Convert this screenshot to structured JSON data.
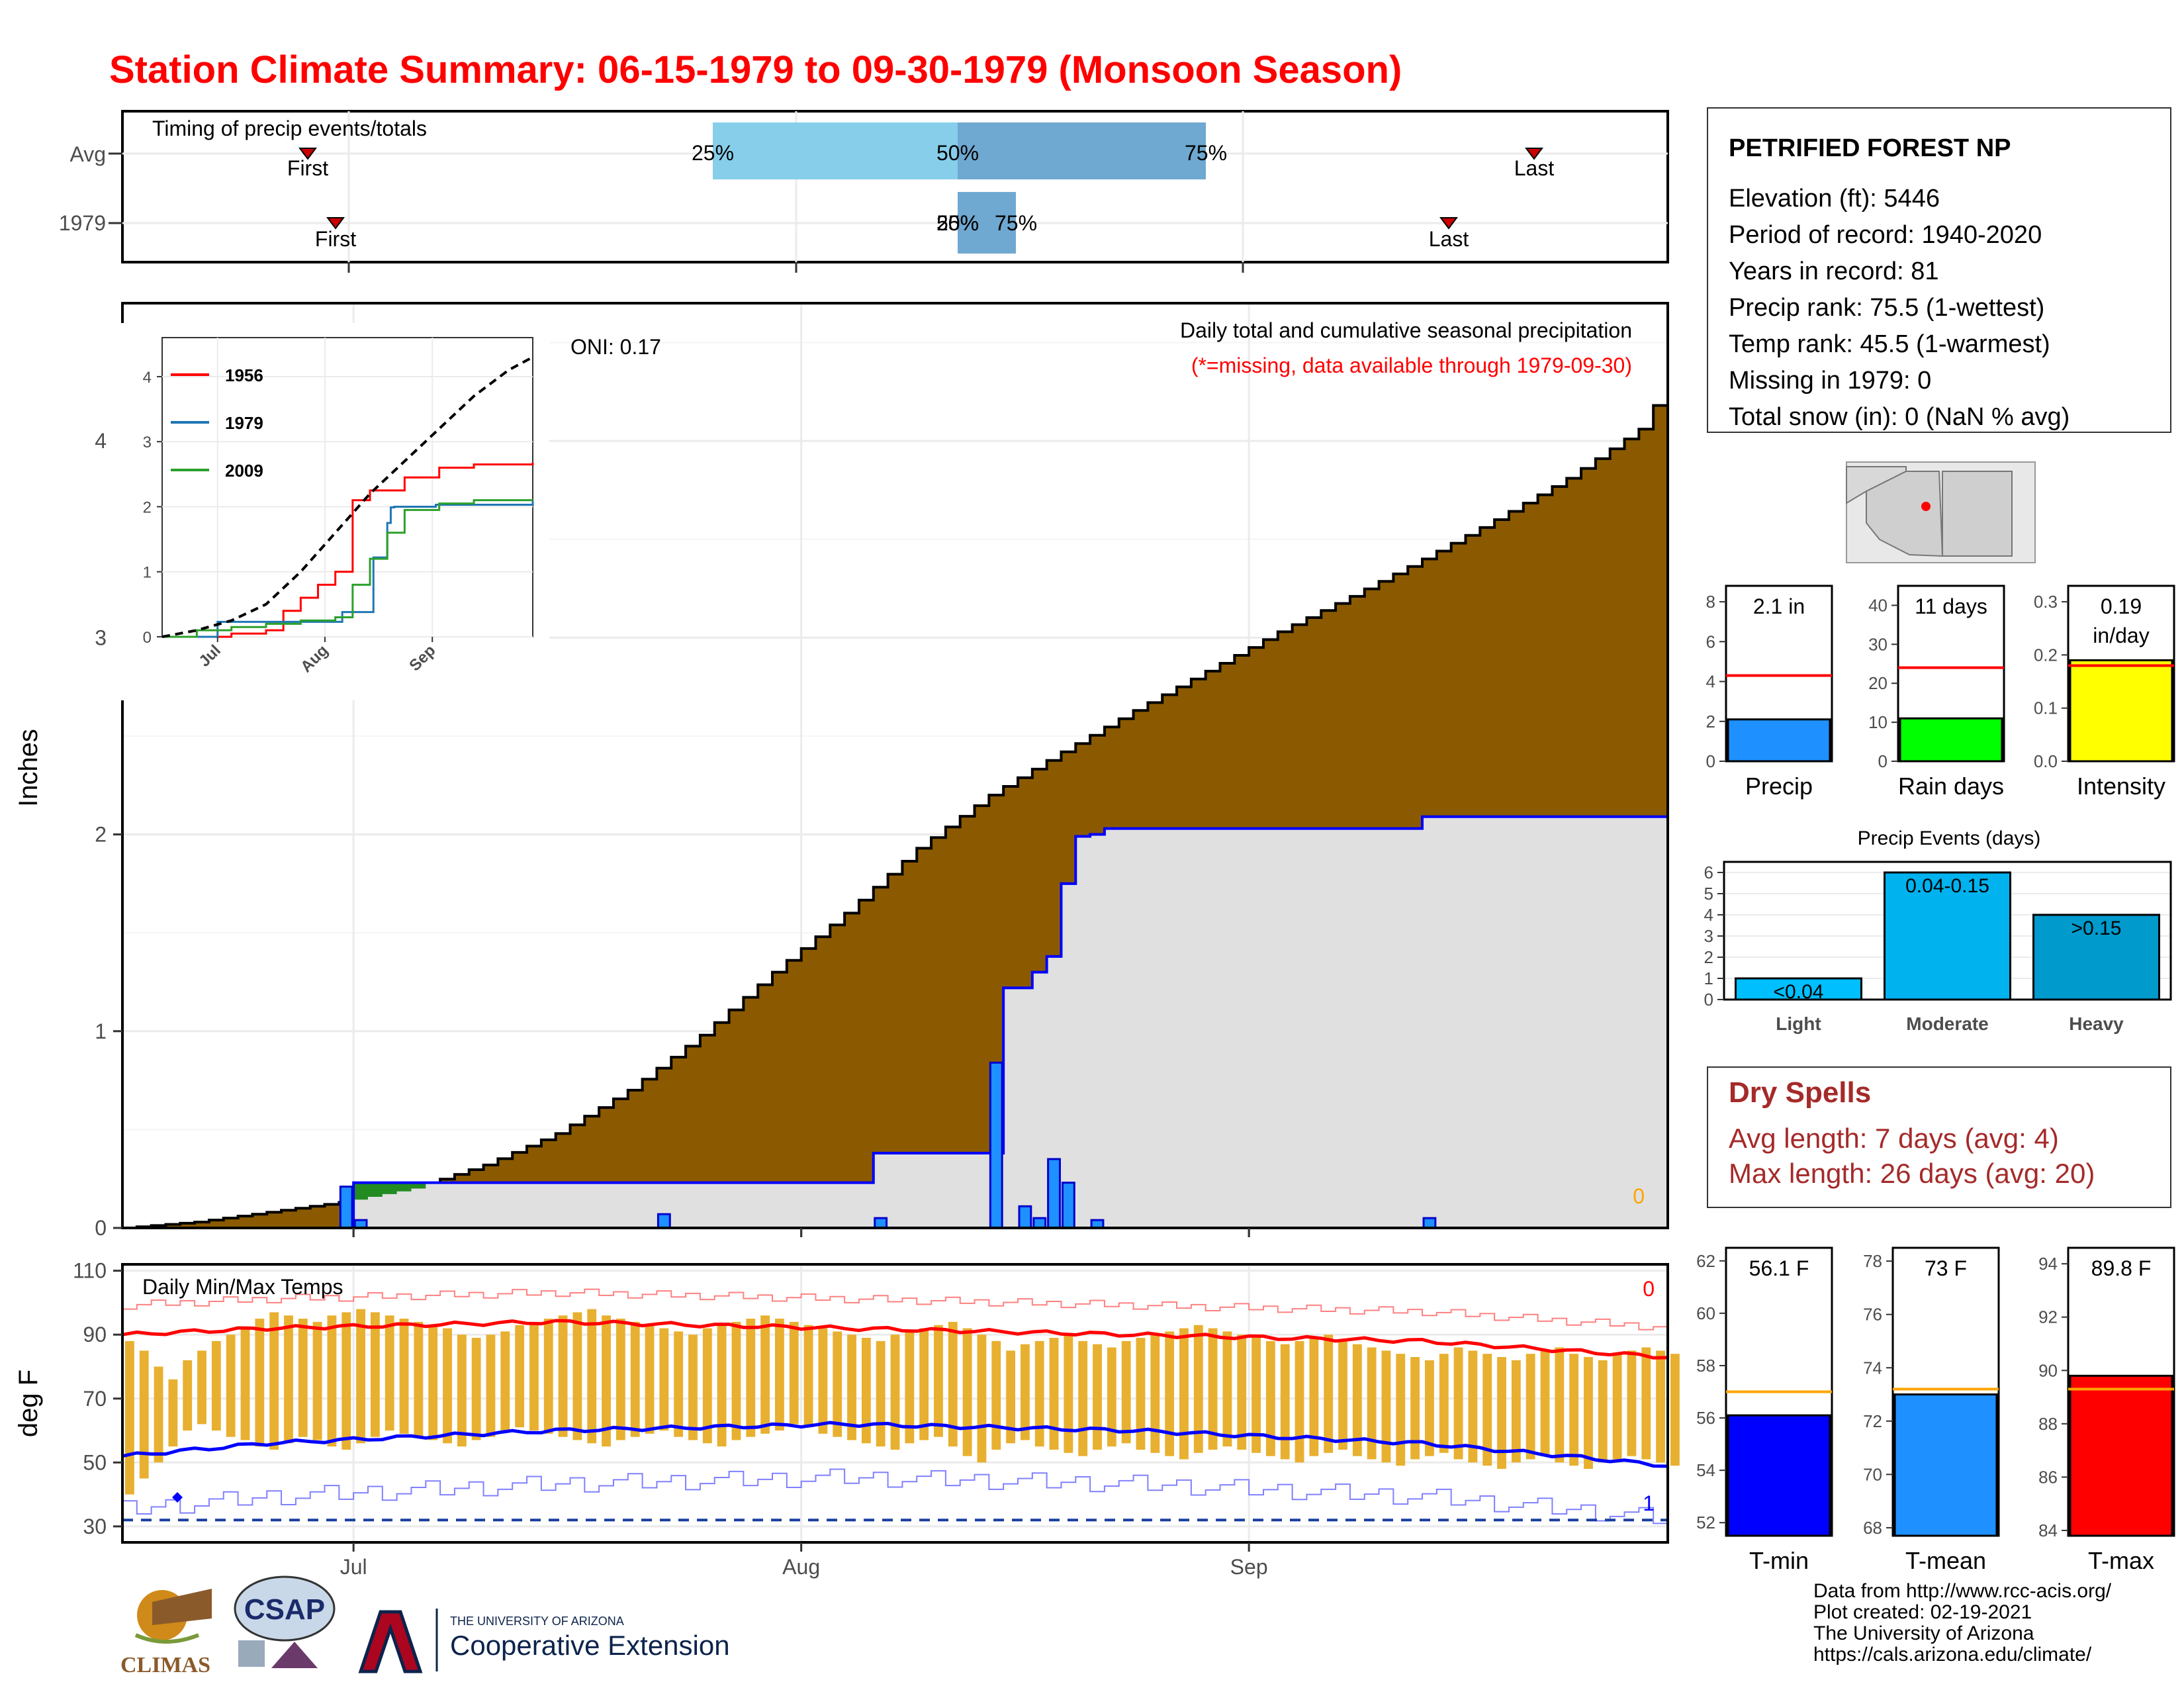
{
  "title": "Station Climate Summary: 06-15-1979 to 09-30-1979 (Monsoon Season)",
  "colors": {
    "title": "#ff0000",
    "cumulative_avg_fill": "#8b5a00",
    "cumulative_year_fill": "#e0e0e0",
    "year_line": "#0000ff",
    "daily_bar": "#1e90ff",
    "excess_fill": "#228b22",
    "temp_bar": "#e8b030",
    "tmax_line": "#ff0000",
    "tmin_line": "#0000ff",
    "precip_box": "#1e90ff",
    "raindays_box": "#00ff00",
    "intensity_box": "#ffff00",
    "tmin_box": "#0000ff",
    "tmean_box": "#1e90ff",
    "tmax_box": "#ff0000",
    "dry_spells": "#a52a2a"
  },
  "timing": {
    "panel_label": "Timing of precip events/totals",
    "row_labels": [
      "Avg",
      "1979"
    ],
    "first_label": "First",
    "last_label": "Last",
    "q25": "25%",
    "q50": "50%",
    "q75": "75%"
  },
  "station": {
    "name": "PETRIFIED FOREST NP",
    "lines": [
      "Elevation (ft): 5446",
      "Period of record: 1940-2020",
      "Years in record: 81",
      "Precip rank: 75.5 (1-wettest)",
      "Temp rank: 45.5 (1-warmest)",
      "Missing in 1979: 0",
      "Total snow (in): 0 (NaN % avg)"
    ]
  },
  "precip_panel": {
    "ylabel": "Inches",
    "oni": "ONI: 0.17",
    "label": "Daily total and cumulative seasonal precipitation",
    "missing_note": "(*=missing, data available through 1979-09-30)",
    "missing_count": "0",
    "yticks": [
      "0",
      "1",
      "2",
      "3",
      "4"
    ],
    "month_labels": [
      "Jul",
      "Aug",
      "Sep"
    ]
  },
  "inset": {
    "legend": [
      "1956",
      "1979",
      "2009"
    ],
    "legend_colors": [
      "#ff0000",
      "#1f77b4",
      "#2ca02c"
    ],
    "yticks": [
      "0",
      "1",
      "2",
      "3",
      "4"
    ],
    "xticks": [
      "Jul",
      "Aug",
      "Sep"
    ]
  },
  "temp_panel": {
    "ylabel": "deg F",
    "label": "Daily Min/Max Temps",
    "missing_count": "0",
    "freeze_count": "1",
    "yticks": [
      "30",
      "50",
      "70",
      "90",
      "110"
    ],
    "month_labels": [
      "Jul",
      "Aug",
      "Sep"
    ]
  },
  "mini_precip": [
    {
      "value_label": "2.1 in",
      "xlabel": "Precip",
      "yticks": [
        "0",
        "2",
        "4",
        "6",
        "8"
      ]
    },
    {
      "value_label": "11 days",
      "xlabel": "Rain days",
      "yticks": [
        "0",
        "10",
        "20",
        "30",
        "40"
      ]
    },
    {
      "value_label": "0.19",
      "value_label2": "in/day",
      "xlabel": "Intensity",
      "yticks": [
        "0.0",
        "0.1",
        "0.2",
        "0.3"
      ]
    }
  ],
  "events": {
    "title": "Precip Events (days)",
    "yticks": [
      "0",
      "1",
      "2",
      "3",
      "4",
      "5",
      "6"
    ],
    "categories": [
      "Light",
      "Moderate",
      "Heavy"
    ],
    "labels": [
      "<0.04",
      "0.04-0.15",
      ">0.15"
    ],
    "colors": [
      "#00bfff",
      "#00b2ee",
      "#009acd"
    ]
  },
  "dry_spells": {
    "title": "Dry Spells",
    "avg": "Avg length: 7 days (avg: 4)",
    "max": "Max length: 26 days (avg: 20)"
  },
  "mini_temp": [
    {
      "value_label": "56.1 F",
      "xlabel": "T-min",
      "yticks": [
        "52",
        "54",
        "56",
        "58",
        "60",
        "62"
      ]
    },
    {
      "value_label": "73 F",
      "xlabel": "T-mean",
      "yticks": [
        "68",
        "70",
        "72",
        "74",
        "76",
        "78"
      ]
    },
    {
      "value_label": "89.8 F",
      "xlabel": "T-max",
      "yticks": [
        "84",
        "86",
        "88",
        "90",
        "92",
        "94"
      ]
    }
  ],
  "footer": [
    "Data from http://www.rcc-acis.org/",
    "Plot created: 02-19-2021",
    "The University of Arizona",
    "https://cals.arizona.edu/climate/"
  ],
  "logos": {
    "climas": "CLIMAS",
    "csap": "CSAP",
    "ua_small": "THE UNIVERSITY OF ARIZONA",
    "ua_big": "Cooperative Extension"
  },
  "chart_data": [
    {
      "type": "area",
      "title": "Daily total and cumulative seasonal precipitation",
      "ylabel": "Inches",
      "ylim": [
        0,
        4.7
      ],
      "x_start": "1979-06-15",
      "x_end": "1979-09-30",
      "avg_cumulative": {
        "x_day": [
          0,
          5,
          10,
          15,
          20,
          25,
          30,
          35,
          40,
          45,
          50,
          55,
          60,
          65,
          70,
          75,
          80,
          85,
          90,
          95,
          100,
          105,
          107
        ],
        "y": [
          0.0,
          0.03,
          0.08,
          0.13,
          0.2,
          0.32,
          0.48,
          0.7,
          0.98,
          1.3,
          1.6,
          1.93,
          2.2,
          2.42,
          2.63,
          2.83,
          3.03,
          3.21,
          3.4,
          3.6,
          3.81,
          4.06,
          4.3
        ]
      },
      "year_cumulative": {
        "x_day": [
          0,
          15,
          16,
          37,
          52,
          60,
          61,
          62,
          63,
          64,
          65,
          66,
          67,
          68,
          71,
          79,
          90,
          100,
          107
        ],
        "y": [
          0,
          0,
          0.23,
          0.23,
          0.38,
          0.38,
          1.22,
          1.22,
          1.3,
          1.38,
          1.75,
          1.99,
          2.0,
          2.03,
          2.03,
          2.03,
          2.09,
          2.09,
          2.09
        ]
      },
      "daily_bars": [
        {
          "date": "1979-06-30",
          "value": 0.21
        },
        {
          "date": "1979-07-01",
          "value": 0.04
        },
        {
          "date": "1979-07-22",
          "value": 0.07
        },
        {
          "date": "1979-08-06",
          "value": 0.05
        },
        {
          "date": "1979-08-14",
          "value": 0.84
        },
        {
          "date": "1979-08-16",
          "value": 0.11
        },
        {
          "date": "1979-08-17",
          "value": 0.05
        },
        {
          "date": "1979-08-18",
          "value": 0.35
        },
        {
          "date": "1979-08-19",
          "value": 0.23
        },
        {
          "date": "1979-08-21",
          "value": 0.04
        },
        {
          "date": "1979-09-13",
          "value": 0.05
        }
      ]
    },
    {
      "type": "line",
      "title": "Daily Min/Max Temps",
      "ylabel": "deg F",
      "ylim": [
        25,
        112
      ],
      "avg_tmax": {
        "x_day": [
          0,
          10,
          20,
          30,
          40,
          50,
          60,
          70,
          80,
          90,
          100,
          107
        ],
        "y": [
          90,
          92,
          93,
          94,
          93,
          92,
          91,
          90,
          89,
          88,
          85,
          83
        ]
      },
      "avg_tmin": {
        "x_day": [
          0,
          10,
          20,
          30,
          40,
          50,
          60,
          70,
          80,
          90,
          100,
          107
        ],
        "y": [
          52,
          56,
          58,
          60,
          61,
          62,
          61,
          60,
          58,
          56,
          52,
          49
        ]
      },
      "daily_tmax": [
        88,
        85,
        80,
        76,
        82,
        85,
        88,
        90,
        92,
        95,
        97,
        96,
        95,
        94,
        96,
        97,
        98,
        97,
        96,
        95,
        94,
        93,
        92,
        90,
        89,
        90,
        91,
        93,
        94,
        95,
        96,
        97,
        98,
        96,
        95,
        94,
        93,
        92,
        91,
        90,
        92,
        93,
        94,
        95,
        96,
        95,
        94,
        93,
        92,
        91,
        90,
        89,
        88,
        90,
        91,
        92,
        93,
        94,
        92,
        90,
        88,
        85,
        87,
        88,
        89,
        90,
        88,
        87,
        86,
        88,
        89,
        90,
        91,
        92,
        93,
        92,
        91,
        90,
        89,
        88,
        87,
        88,
        89,
        90,
        88,
        87,
        86,
        85,
        84,
        83,
        82,
        84,
        86,
        85,
        84,
        83,
        82,
        84,
        85,
        86,
        84,
        83,
        82,
        84,
        85,
        86,
        85,
        84
      ],
      "daily_tmin": [
        40,
        45,
        50,
        55,
        60,
        62,
        60,
        58,
        57,
        55,
        54,
        56,
        58,
        57,
        55,
        54,
        56,
        58,
        60,
        59,
        58,
        57,
        56,
        55,
        57,
        58,
        60,
        61,
        60,
        59,
        58,
        57,
        56,
        55,
        57,
        58,
        59,
        60,
        58,
        57,
        56,
        55,
        57,
        58,
        59,
        60,
        62,
        61,
        59,
        58,
        57,
        56,
        55,
        54,
        56,
        57,
        58,
        55,
        52,
        50,
        54,
        56,
        57,
        55,
        54,
        53,
        52,
        54,
        55,
        56,
        54,
        53,
        52,
        51,
        53,
        54,
        55,
        54,
        53,
        52,
        51,
        50,
        52,
        53,
        54,
        52,
        51,
        50,
        49,
        51,
        52,
        53,
        51,
        50,
        49,
        48,
        50,
        51,
        52,
        50,
        49,
        48,
        50,
        51,
        52,
        51,
        50,
        49
      ],
      "record_max_line": true,
      "record_min_line": true,
      "freeze_line": 32
    },
    {
      "type": "line",
      "xticks": [
        "Jul",
        "Aug",
        "Sep"
      ],
      "ylim": [
        0,
        4.6
      ],
      "series": [
        {
          "name": "1956",
          "x_day": [
            0,
            10,
            20,
            30,
            35,
            40,
            45,
            50,
            55,
            60,
            70,
            80,
            90,
            100,
            107
          ],
          "y": [
            0,
            0,
            0.05,
            0.1,
            0.4,
            0.6,
            0.8,
            1.0,
            2.1,
            2.25,
            2.45,
            2.6,
            2.65,
            2.65,
            2.68
          ]
        },
        {
          "name": "1979",
          "x_day": [
            0,
            15,
            16,
            37,
            52,
            60,
            61,
            65,
            66,
            67,
            79,
            107
          ],
          "y": [
            0,
            0,
            0.23,
            0.23,
            0.38,
            0.38,
            1.22,
            1.75,
            1.99,
            2.0,
            2.03,
            2.09
          ]
        },
        {
          "name": "2009",
          "x_day": [
            0,
            10,
            20,
            30,
            40,
            50,
            55,
            60,
            65,
            70,
            80,
            90,
            107
          ],
          "y": [
            0,
            0.1,
            0.15,
            0.2,
            0.25,
            0.3,
            0.8,
            1.2,
            1.6,
            1.95,
            2.05,
            2.1,
            2.1
          ]
        },
        {
          "name": "",
          "x_day": [
            0,
            10,
            20,
            30,
            40,
            50,
            60,
            70,
            80,
            90,
            100,
            107
          ],
          "y": [
            0,
            0.1,
            0.25,
            0.5,
            1.0,
            1.6,
            2.2,
            2.7,
            3.2,
            3.7,
            4.1,
            4.3
          ]
        }
      ]
    },
    {
      "type": "bar",
      "categories": [
        "Precip",
        "Rain days",
        "Intensity"
      ],
      "values": [
        2.1,
        11,
        0.19
      ],
      "averages": [
        4.3,
        24,
        0.18
      ],
      "ylims": [
        [
          0,
          8.8
        ],
        [
          0,
          45
        ],
        [
          0,
          0.33
        ]
      ]
    },
    {
      "type": "bar",
      "title": "Precip Events (days)",
      "categories": [
        "Light",
        "Moderate",
        "Heavy"
      ],
      "values": [
        1,
        6,
        4
      ],
      "ylim": [
        0,
        6.5
      ]
    },
    {
      "type": "bar",
      "categories": [
        "T-min",
        "T-mean",
        "T-max"
      ],
      "values": [
        56.1,
        73,
        89.8
      ],
      "averages": [
        57.0,
        73.2,
        89.3
      ],
      "ylims": [
        [
          51.5,
          62.5
        ],
        [
          67.7,
          78.5
        ],
        [
          83.8,
          94.6
        ]
      ]
    }
  ]
}
